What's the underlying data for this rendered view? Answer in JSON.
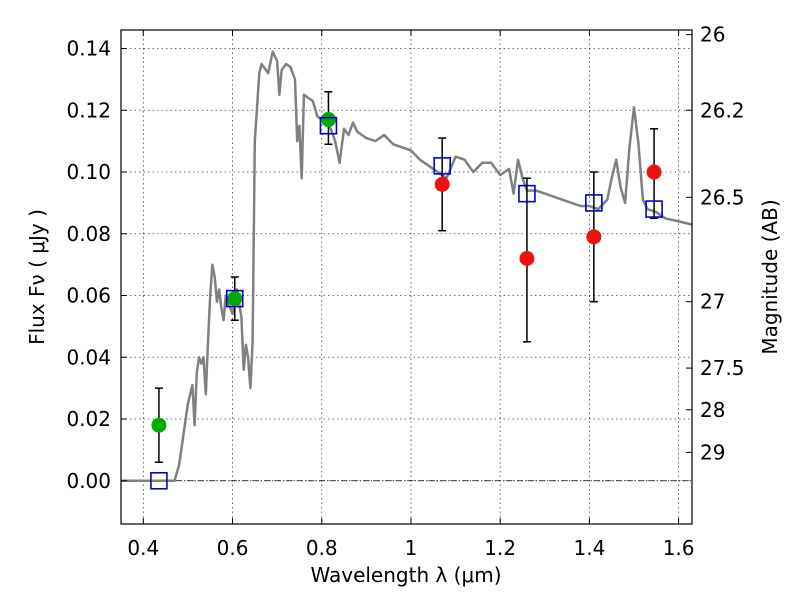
{
  "chart_data": {
    "type": "scatter",
    "xlabel": "Wavelength  λ (μm)",
    "ylabel": "Flux  Fν  ( μJy )",
    "ylabel_right": "Magnitude (AB)",
    "xlim": [
      0.35,
      1.63
    ],
    "ylim": [
      -0.014,
      0.146
    ],
    "grid": true,
    "x_ticks": [
      0.4,
      0.6,
      0.8,
      1.0,
      1.2,
      1.4,
      1.6
    ],
    "x_tick_labels": [
      "0.4",
      "0.6",
      "0.8",
      "1",
      "1.2",
      "1.4",
      "1.6"
    ],
    "y_ticks": [
      0.0,
      0.02,
      0.04,
      0.06,
      0.08,
      0.1,
      0.12,
      0.14
    ],
    "y_tick_labels": [
      "0.00",
      "0.02",
      "0.04",
      "0.06",
      "0.08",
      "0.10",
      "0.12",
      "0.14"
    ],
    "right_axis_ticks": [
      {
        "label": "26",
        "flux": 0.1445
      },
      {
        "label": "26.2",
        "flux": 0.12
      },
      {
        "label": "26.5",
        "flux": 0.0918
      },
      {
        "label": "27",
        "flux": 0.058
      },
      {
        "label": "27.5",
        "flux": 0.0365
      },
      {
        "label": "28",
        "flux": 0.023
      },
      {
        "label": "29",
        "flux": 0.0092
      }
    ],
    "colors": {
      "model": "#808080",
      "green": "#00aa00",
      "red": "#ee1111",
      "square": "#0000cc",
      "errorbar": "#000000",
      "zero_line": "#000000"
    },
    "series": [
      {
        "name": "model SED",
        "style": "line",
        "x": [
          0.35,
          0.46,
          0.47,
          0.48,
          0.49,
          0.5,
          0.51,
          0.515,
          0.52,
          0.525,
          0.53,
          0.535,
          0.54,
          0.545,
          0.55,
          0.555,
          0.56,
          0.565,
          0.57,
          0.575,
          0.58,
          0.585,
          0.59,
          0.595,
          0.6,
          0.61,
          0.62,
          0.625,
          0.63,
          0.635,
          0.64,
          0.645,
          0.65,
          0.66,
          0.665,
          0.67,
          0.68,
          0.69,
          0.7,
          0.705,
          0.71,
          0.72,
          0.73,
          0.74,
          0.745,
          0.75,
          0.755,
          0.76,
          0.77,
          0.78,
          0.79,
          0.8,
          0.81,
          0.82,
          0.83,
          0.84,
          0.85,
          0.86,
          0.87,
          0.88,
          0.9,
          0.92,
          0.94,
          0.96,
          0.98,
          1.0,
          1.02,
          1.04,
          1.06,
          1.08,
          1.1,
          1.12,
          1.14,
          1.16,
          1.18,
          1.2,
          1.22,
          1.23,
          1.24,
          1.25,
          1.26,
          1.28,
          1.3,
          1.32,
          1.34,
          1.36,
          1.38,
          1.4,
          1.42,
          1.44,
          1.45,
          1.46,
          1.47,
          1.48,
          1.49,
          1.5,
          1.51,
          1.52,
          1.53,
          1.55,
          1.57,
          1.6,
          1.63
        ],
        "y": [
          0.0,
          0.0,
          0.0,
          0.005,
          0.015,
          0.025,
          0.031,
          0.018,
          0.035,
          0.04,
          0.038,
          0.04,
          0.028,
          0.045,
          0.06,
          0.07,
          0.066,
          0.058,
          0.062,
          0.056,
          0.052,
          0.06,
          0.058,
          0.056,
          0.054,
          0.062,
          0.053,
          0.036,
          0.044,
          0.04,
          0.03,
          0.045,
          0.11,
          0.132,
          0.135,
          0.134,
          0.132,
          0.139,
          0.136,
          0.125,
          0.133,
          0.135,
          0.134,
          0.13,
          0.11,
          0.115,
          0.098,
          0.125,
          0.124,
          0.123,
          0.118,
          0.117,
          0.116,
          0.114,
          0.11,
          0.103,
          0.114,
          0.112,
          0.116,
          0.113,
          0.111,
          0.11,
          0.112,
          0.109,
          0.108,
          0.107,
          0.104,
          0.102,
          0.1,
          0.098,
          0.105,
          0.104,
          0.1,
          0.103,
          0.103,
          0.099,
          0.101,
          0.093,
          0.104,
          0.098,
          0.094,
          0.094,
          0.093,
          0.092,
          0.091,
          0.09,
          0.089,
          0.089,
          0.088,
          0.091,
          0.098,
          0.104,
          0.095,
          0.09,
          0.108,
          0.121,
          0.109,
          0.091,
          0.088,
          0.087,
          0.085,
          0.084,
          0.083
        ]
      },
      {
        "name": "green points",
        "style": "filled-circle",
        "x": [
          0.435,
          0.605,
          0.815
        ],
        "y": [
          0.018,
          0.059,
          0.117
        ],
        "yerr_low": [
          0.006,
          0.052,
          0.109
        ],
        "yerr_high": [
          0.03,
          0.066,
          0.126
        ]
      },
      {
        "name": "red points",
        "style": "filled-circle",
        "x": [
          1.07,
          1.26,
          1.41,
          1.545
        ],
        "y": [
          0.096,
          0.072,
          0.079,
          0.1
        ],
        "yerr_low": [
          0.081,
          0.045,
          0.058,
          0.085
        ],
        "yerr_high": [
          0.111,
          0.098,
          0.1,
          0.114
        ]
      },
      {
        "name": "model band fluxes",
        "style": "open-square",
        "x": [
          0.435,
          0.605,
          0.815,
          1.07,
          1.26,
          1.41,
          1.545
        ],
        "y": [
          0.0,
          0.059,
          0.115,
          0.102,
          0.093,
          0.09,
          0.088
        ]
      }
    ]
  }
}
